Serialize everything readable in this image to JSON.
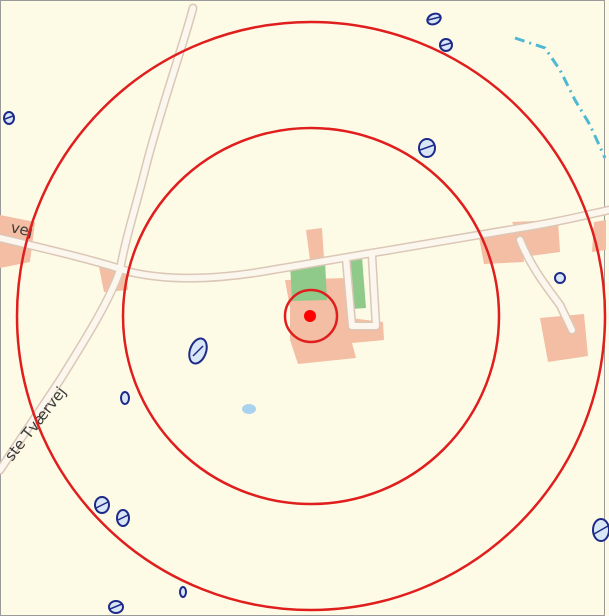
{
  "map": {
    "colors": {
      "land": "#fdfbe6",
      "frame": "#9a9a9a",
      "road_fill": "#fbf6ee",
      "road_edge": "#dcc7b7",
      "building": "#f3bea3",
      "field": "#8fca8a",
      "pond_outline": "#1d2a8a",
      "pond_fill": "#d9e6f5",
      "water_line": "#4fb8d2",
      "ring": "#e01e1e",
      "center_marker": "#ff0000"
    },
    "road_labels": [
      {
        "text": "vej"
      },
      {
        "text": "ste Tværvej"
      }
    ],
    "rings": [
      {
        "name": "inner-ring"
      },
      {
        "name": "middle-ring"
      },
      {
        "name": "outer-ring"
      }
    ],
    "center_marker": {
      "name": "location-marker"
    }
  }
}
